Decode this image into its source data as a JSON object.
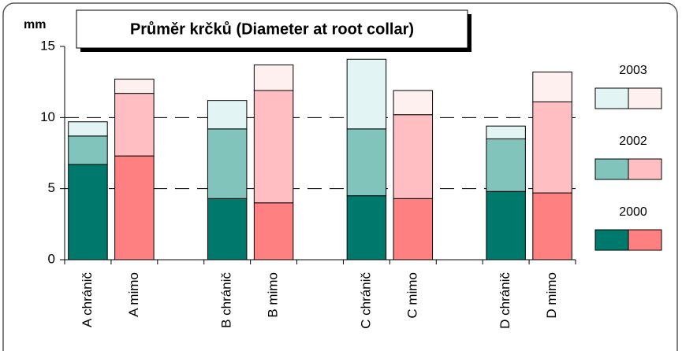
{
  "chart_data": {
    "type": "stacked_bar",
    "title": "Průměr krčků (Diameter at root collar)",
    "y_label": "mm",
    "categories": [
      "A chránič",
      "A mimo",
      null,
      "B chránič",
      "B mimo",
      null,
      "C chránič",
      "C mimo",
      null,
      "D chránič",
      "D mimo"
    ],
    "series": [
      {
        "name": "2000",
        "colors": [
          "#00796d",
          "#ff8080",
          null,
          "#00796d",
          "#ff8080",
          null,
          "#00796d",
          "#ff8080",
          null,
          "#00796d",
          "#ff8080"
        ],
        "values": [
          6.7,
          7.3,
          null,
          4.3,
          4.0,
          null,
          4.5,
          4.3,
          null,
          4.8,
          4.7
        ]
      },
      {
        "name": "2002",
        "colors": [
          "#80c4bc",
          "#ffbfc2",
          null,
          "#80c4bc",
          "#ffbfc2",
          null,
          "#80c4bc",
          "#ffbfc2",
          null,
          "#80c4bc",
          "#ffbfc2"
        ],
        "values": [
          2.0,
          4.4,
          null,
          4.9,
          7.9,
          null,
          4.7,
          5.9,
          null,
          3.7,
          6.4
        ]
      },
      {
        "name": "2003",
        "colors": [
          "#e2f4f3",
          "#fff0f0",
          null,
          "#e2f4f3",
          "#fff0f0",
          null,
          "#e2f4f3",
          "#fff0f0",
          null,
          "#e2f4f3",
          "#fff0f0"
        ],
        "values": [
          1.0,
          1.0,
          null,
          2.0,
          1.8,
          null,
          4.9,
          1.7,
          null,
          0.9,
          2.1
        ]
      }
    ],
    "ylim": [
      0,
      15
    ],
    "yticks": [
      0,
      5,
      10,
      15
    ],
    "grid": true,
    "legend": "right"
  }
}
